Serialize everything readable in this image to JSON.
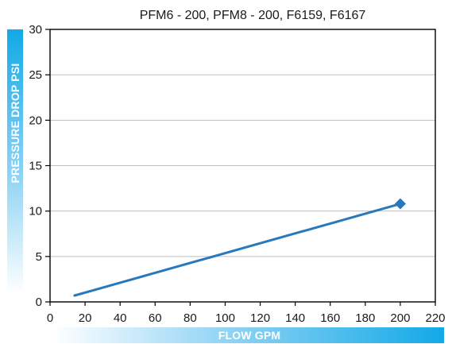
{
  "chart_data": {
    "type": "line",
    "title": "PFM6 - 200, PFM8 - 200, F6159, F6167",
    "xlabel": "FLOW GPM",
    "ylabel": "PRESSURE DROP PSI",
    "xlim": [
      0,
      220
    ],
    "ylim": [
      0,
      30
    ],
    "x_ticks": [
      0,
      20,
      40,
      60,
      80,
      100,
      120,
      140,
      160,
      180,
      200,
      220
    ],
    "y_ticks": [
      0,
      5,
      10,
      15,
      20,
      25,
      30
    ],
    "grid": "horizontal",
    "series": [
      {
        "color": "#2878be",
        "points": [
          {
            "x": 14,
            "y": 0.7
          },
          {
            "x": 200,
            "y": 10.8
          }
        ],
        "end_marker": "diamond"
      }
    ]
  }
}
